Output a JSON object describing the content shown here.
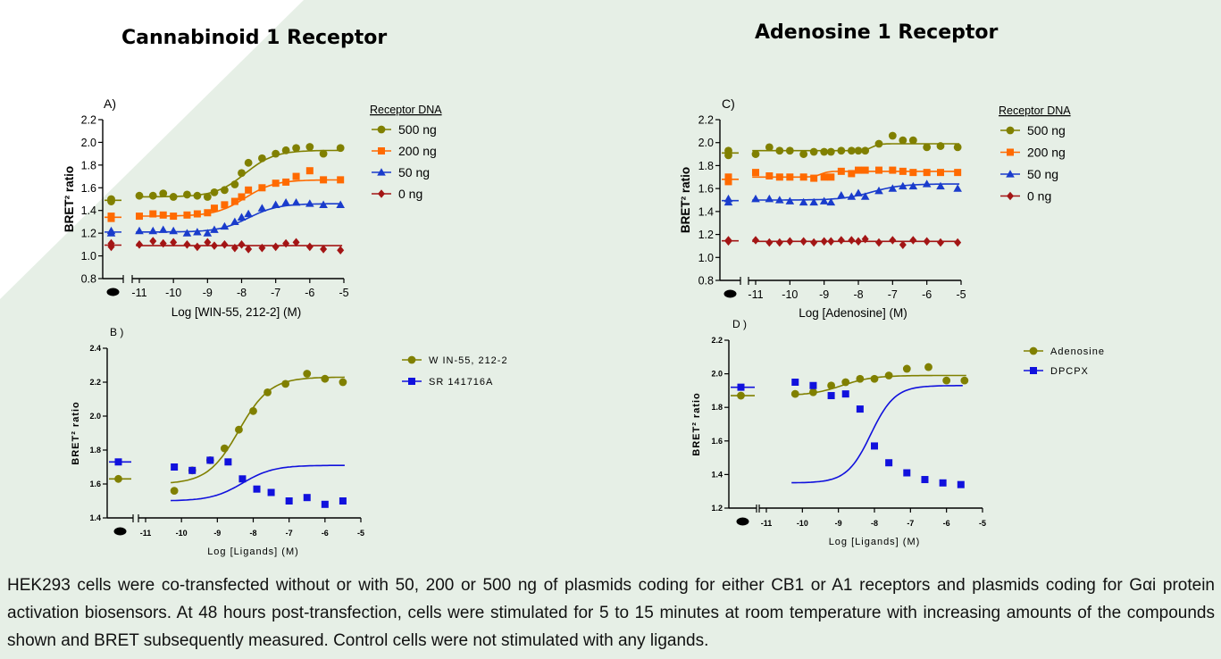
{
  "titles": {
    "left": "Cannabinoid 1 Receptor",
    "right": "Adenosine 1 Receptor"
  },
  "caption": "HEK293 cells were co-transfected without or with 50, 200 or 500 ng of plasmids coding for either CB1 or A1 receptors and plasmids coding for Gαi protein activation biosensors. At 48 hours post-transfection, cells were stimulated for 5 to 15 minutes at room temperature with increasing amounts of the compounds shown and BRET subsequently measured. Control cells were not stimulated with any ligands.",
  "colors": {
    "background": "#e6efe6",
    "olive": "#808000",
    "orange": "#ff6a00",
    "blue": "#1a3ccc",
    "darkred": "#a31515",
    "pure_blue": "#1111dd"
  },
  "chart_data": [
    {
      "panel": "A)",
      "type": "scatter",
      "xlabel": "Log [WIN-55, 212-2] (M)",
      "ylabel": "BRET² ratio",
      "xlim": [
        -11,
        -5
      ],
      "ylim": [
        0.8,
        2.2
      ],
      "xticks": [
        -11,
        -10,
        -9,
        -8,
        -7,
        -6,
        -5
      ],
      "yticks": [
        0.8,
        1.0,
        1.2,
        1.4,
        1.6,
        1.8,
        2.0,
        2.2
      ],
      "legend_title": "Receptor DNA",
      "legend_position": "right",
      "series": [
        {
          "name": "500 ng",
          "color": "#808000",
          "marker": "circle",
          "control": [
            1.48,
            1.5
          ],
          "x": [
            -11,
            -10.6,
            -10.3,
            -10,
            -9.6,
            -9.3,
            -9,
            -8.8,
            -8.5,
            -8.2,
            -8,
            -7.8,
            -7.4,
            -7,
            -6.7,
            -6.4,
            -6,
            -5.6,
            -5.1
          ],
          "y": [
            1.53,
            1.53,
            1.55,
            1.52,
            1.54,
            1.53,
            1.52,
            1.56,
            1.58,
            1.63,
            1.73,
            1.82,
            1.86,
            1.9,
            1.93,
            1.95,
            1.96,
            1.9,
            1.95
          ],
          "fit": {
            "bottom": 1.52,
            "top": 1.93,
            "logec50": -7.9,
            "hill": 1.0
          }
        },
        {
          "name": "200 ng",
          "color": "#ff6a00",
          "marker": "square",
          "control": [
            1.33,
            1.35
          ],
          "x": [
            -11,
            -10.6,
            -10.3,
            -10,
            -9.6,
            -9.3,
            -9,
            -8.8,
            -8.5,
            -8.2,
            -8,
            -7.8,
            -7.4,
            -7,
            -6.7,
            -6.4,
            -6,
            -5.6,
            -5.1
          ],
          "y": [
            1.35,
            1.37,
            1.36,
            1.35,
            1.36,
            1.37,
            1.38,
            1.42,
            1.45,
            1.48,
            1.52,
            1.58,
            1.6,
            1.64,
            1.65,
            1.7,
            1.75,
            1.67,
            1.67
          ],
          "fit": {
            "bottom": 1.35,
            "top": 1.67,
            "logec50": -7.9,
            "hill": 1.0
          }
        },
        {
          "name": "50 ng",
          "color": "#1a3ccc",
          "marker": "triangle",
          "control": [
            1.2,
            1.22
          ],
          "x": [
            -11,
            -10.6,
            -10.3,
            -10,
            -9.6,
            -9.3,
            -9,
            -8.8,
            -8.5,
            -8.2,
            -8,
            -7.8,
            -7.4,
            -7,
            -6.7,
            -6.4,
            -6,
            -5.6,
            -5.1
          ],
          "y": [
            1.22,
            1.22,
            1.23,
            1.22,
            1.2,
            1.21,
            1.2,
            1.23,
            1.26,
            1.3,
            1.34,
            1.37,
            1.42,
            1.45,
            1.47,
            1.47,
            1.46,
            1.45,
            1.45
          ],
          "fit": {
            "bottom": 1.21,
            "top": 1.46,
            "logec50": -7.8,
            "hill": 1.0
          }
        },
        {
          "name": "0 ng",
          "color": "#a31515",
          "marker": "diamond",
          "control": [
            1.08,
            1.11
          ],
          "x": [
            -11,
            -10.6,
            -10.3,
            -10,
            -9.6,
            -9.3,
            -9,
            -8.8,
            -8.5,
            -8.2,
            -8,
            -7.8,
            -7.4,
            -7,
            -6.7,
            -6.4,
            -6,
            -5.6,
            -5.1
          ],
          "y": [
            1.1,
            1.13,
            1.11,
            1.12,
            1.1,
            1.08,
            1.12,
            1.09,
            1.1,
            1.07,
            1.1,
            1.06,
            1.07,
            1.08,
            1.11,
            1.12,
            1.08,
            1.06,
            1.05
          ],
          "fit": {
            "bottom": 1.09,
            "top": 1.09,
            "logec50": -8,
            "hill": 1.0
          }
        }
      ]
    },
    {
      "panel": "C)",
      "type": "scatter",
      "xlabel": "Log [Adenosine] (M)",
      "ylabel": "BRET² ratio",
      "xlim": [
        -11,
        -5
      ],
      "ylim": [
        0.8,
        2.2
      ],
      "xticks": [
        -11,
        -10,
        -9,
        -8,
        -7,
        -6,
        -5
      ],
      "yticks": [
        0.8,
        1.0,
        1.2,
        1.4,
        1.6,
        1.8,
        2.0,
        2.2
      ],
      "legend_title": "Receptor DNA",
      "legend_position": "right",
      "series": [
        {
          "name": "500 ng",
          "color": "#808000",
          "marker": "circle",
          "control": [
            1.89,
            1.93
          ],
          "x": [
            -11,
            -10.6,
            -10.3,
            -10,
            -9.6,
            -9.3,
            -9,
            -8.8,
            -8.5,
            -8.2,
            -8,
            -7.8,
            -7.4,
            -7,
            -6.7,
            -6.4,
            -6,
            -5.6,
            -5.1
          ],
          "y": [
            1.9,
            1.96,
            1.93,
            1.93,
            1.9,
            1.92,
            1.92,
            1.92,
            1.93,
            1.93,
            1.93,
            1.93,
            1.99,
            2.06,
            2.02,
            2.02,
            1.96,
            1.97,
            1.96
          ],
          "fit": {
            "bottom": 1.93,
            "top": 1.99,
            "logec50": -7.6,
            "hill": 4.0
          }
        },
        {
          "name": "200 ng",
          "color": "#ff6a00",
          "marker": "square",
          "control": [
            1.66,
            1.7
          ],
          "x": [
            -11,
            -10.6,
            -10.3,
            -10,
            -9.6,
            -9.3,
            -9,
            -8.8,
            -8.5,
            -8.2,
            -8,
            -7.8,
            -7.4,
            -7,
            -6.7,
            -6.4,
            -6,
            -5.6,
            -5.1
          ],
          "y": [
            1.74,
            1.71,
            1.7,
            1.7,
            1.7,
            1.69,
            1.7,
            1.7,
            1.75,
            1.73,
            1.76,
            1.76,
            1.76,
            1.76,
            1.75,
            1.74,
            1.74,
            1.74,
            1.74
          ],
          "fit": {
            "bottom": 1.7,
            "top": 1.75,
            "logec50": -9.1,
            "hill": 4.0
          }
        },
        {
          "name": "50 ng",
          "color": "#1a3ccc",
          "marker": "triangle",
          "control": [
            1.48,
            1.51
          ],
          "x": [
            -11,
            -10.6,
            -10.3,
            -10,
            -9.6,
            -9.3,
            -9,
            -8.8,
            -8.5,
            -8.2,
            -8,
            -7.8,
            -7.4,
            -7,
            -6.7,
            -6.4,
            -6,
            -5.6,
            -5.1
          ],
          "y": [
            1.51,
            1.51,
            1.5,
            1.49,
            1.48,
            1.48,
            1.49,
            1.48,
            1.54,
            1.53,
            1.56,
            1.53,
            1.58,
            1.6,
            1.62,
            1.62,
            1.64,
            1.62,
            1.6
          ],
          "fit": {
            "bottom": 1.5,
            "top": 1.64,
            "logec50": -7.6,
            "hill": 1.0
          }
        },
        {
          "name": "0 ng",
          "color": "#a31515",
          "marker": "diamond",
          "control": [
            1.14,
            1.15
          ],
          "x": [
            -11,
            -10.6,
            -10.3,
            -10,
            -9.6,
            -9.3,
            -9,
            -8.8,
            -8.5,
            -8.2,
            -8,
            -7.8,
            -7.4,
            -7,
            -6.7,
            -6.4,
            -6,
            -5.6,
            -5.1
          ],
          "y": [
            1.15,
            1.13,
            1.13,
            1.14,
            1.14,
            1.13,
            1.14,
            1.14,
            1.15,
            1.15,
            1.14,
            1.16,
            1.13,
            1.15,
            1.11,
            1.15,
            1.14,
            1.13,
            1.13
          ],
          "fit": {
            "bottom": 1.14,
            "top": 1.14,
            "logec50": -8,
            "hill": 1.0
          }
        }
      ]
    },
    {
      "panel": "B )",
      "type": "scatter",
      "xlabel": "Log [Ligands] (M)",
      "ylabel": "BRET² ratio",
      "xlim": [
        -11,
        -5
      ],
      "ylim": [
        1.4,
        2.4
      ],
      "xticks": [
        -11,
        -10,
        -9,
        -8,
        -7,
        -6,
        -5
      ],
      "yticks": [
        1.4,
        1.6,
        1.8,
        2.0,
        2.2,
        2.4
      ],
      "legend_position": "right",
      "series": [
        {
          "name": "W IN-55, 212-2",
          "color": "#808000",
          "marker": "circle",
          "control": [
            1.63
          ],
          "x": [
            -10.2,
            -9.7,
            -9.2,
            -8.8,
            -8.4,
            -8.0,
            -7.6,
            -7.1,
            -6.5,
            -6.0,
            -5.5
          ],
          "y": [
            1.56,
            1.68,
            1.74,
            1.81,
            1.92,
            2.03,
            2.14,
            2.19,
            2.25,
            2.22,
            2.2
          ],
          "fit": {
            "bottom": 1.6,
            "top": 2.23,
            "logec50": -8.4,
            "hill": 1.0
          }
        },
        {
          "name": "SR 141716A",
          "color": "#1111dd",
          "marker": "square",
          "control": [
            1.73
          ],
          "x": [
            -10.2,
            -9.7,
            -9.2,
            -8.7,
            -8.3,
            -7.9,
            -7.5,
            -7.0,
            -6.5,
            -6.0,
            -5.5
          ],
          "y": [
            1.7,
            1.68,
            1.74,
            1.73,
            1.63,
            1.57,
            1.55,
            1.5,
            1.52,
            1.48,
            1.5
          ],
          "fit": {
            "bottom": 1.5,
            "top": 1.71,
            "logec50": -8.3,
            "hill": 1.0
          }
        }
      ]
    },
    {
      "panel": "D )",
      "type": "scatter",
      "xlabel": "Log [Ligands] (M)",
      "ylabel": "BRET² ratio",
      "xlim": [
        -11,
        -5
      ],
      "ylim": [
        1.2,
        2.2
      ],
      "xticks": [
        -11,
        -10,
        -9,
        -8,
        -7,
        -6,
        -5
      ],
      "yticks": [
        1.2,
        1.4,
        1.6,
        1.8,
        2.0,
        2.2
      ],
      "legend_position": "right",
      "series": [
        {
          "name": "Adenosine",
          "color": "#808000",
          "marker": "circle",
          "control": [
            1.87
          ],
          "x": [
            -10.2,
            -9.7,
            -9.2,
            -8.8,
            -8.4,
            -8.0,
            -7.6,
            -7.1,
            -6.5,
            -6.0,
            -5.5
          ],
          "y": [
            1.88,
            1.89,
            1.93,
            1.95,
            1.97,
            1.97,
            1.99,
            2.03,
            2.04,
            1.96,
            1.96
          ],
          "fit": {
            "bottom": 1.87,
            "top": 1.99,
            "logec50": -8.9,
            "hill": 1.0
          }
        },
        {
          "name": "DPCPX",
          "color": "#1111dd",
          "marker": "square",
          "control": [
            1.92
          ],
          "x": [
            -10.2,
            -9.7,
            -9.2,
            -8.8,
            -8.4,
            -8.0,
            -7.6,
            -7.1,
            -6.6,
            -6.1,
            -5.6
          ],
          "y": [
            1.95,
            1.93,
            1.87,
            1.88,
            1.79,
            1.57,
            1.47,
            1.41,
            1.37,
            1.35,
            1.34
          ],
          "fit": {
            "bottom": 1.35,
            "top": 1.93,
            "logec50": -8.1,
            "hill": 1.3
          }
        }
      ]
    }
  ]
}
